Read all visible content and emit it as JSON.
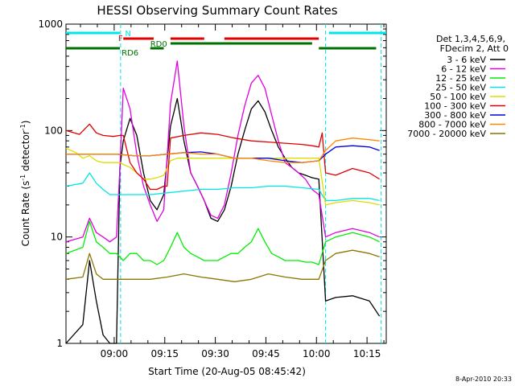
{
  "chart_data": {
    "type": "line",
    "title": "HESSI Observing Summary Count Rates",
    "xlabel": "Start Time (20-Aug-05 08:45:42)",
    "ylabel_main": "Count Rate (s",
    "ylabel_sup1": "-1",
    "ylabel_mid": " detector",
    "ylabel_sup2": "-1",
    "ylabel_end": ")",
    "yscale": "log",
    "ylim": [
      1,
      1000
    ],
    "xlim_minutes": [
      0,
      95
    ],
    "x_tick_labels": [
      {
        "label": "09:00",
        "t": 14.3
      },
      {
        "label": "09:15",
        "t": 29.3
      },
      {
        "label": "09:30",
        "t": 44.3
      },
      {
        "label": "09:45",
        "t": 59.3
      },
      {
        "label": "10:00",
        "t": 74.3
      },
      {
        "label": "10:15",
        "t": 89.3
      }
    ],
    "y_tick_labels": [
      {
        "label": "1",
        "v": 1
      },
      {
        "label": "10",
        "v": 10
      },
      {
        "label": "100",
        "v": 100
      },
      {
        "label": "1000",
        "v": 1000
      }
    ],
    "legend_header": [
      "Det 1,3,4,5,6,9,",
      "FDecim 2, Att 0"
    ],
    "timestamp": "8-Apr-2010 20:33",
    "markers": {
      "N": {
        "label": "N",
        "color": "#00e5e5",
        "segments": [
          [
            0,
            16
          ],
          [
            78,
            95
          ]
        ]
      },
      "F": {
        "label": "F",
        "color": "#e00000",
        "segments": [
          [
            17,
            26
          ],
          [
            31,
            41
          ],
          [
            47,
            75
          ]
        ]
      },
      "RD0": {
        "label": "RD0",
        "color": "#007000",
        "segments": [
          [
            31,
            73
          ]
        ]
      },
      "RD6": {
        "label": "RD6",
        "color": "#007000",
        "segments": [
          [
            0,
            16
          ],
          [
            25,
            29
          ],
          [
            75,
            92
          ]
        ]
      }
    },
    "vlines_minutes": [
      16.2,
      77.0,
      93.5
    ],
    "series": [
      {
        "name": "3 - 6 keV",
        "color": "#000000",
        "x": [
          0,
          5,
          7,
          9,
          11,
          13,
          15,
          16,
          17,
          19,
          21,
          23,
          25,
          27,
          29,
          31,
          33,
          35,
          37,
          39,
          41,
          43,
          45,
          47,
          49,
          51,
          53,
          55,
          57,
          59,
          61,
          63,
          65,
          67,
          69,
          71,
          73,
          75,
          77,
          80,
          85,
          90,
          93
        ],
        "y": [
          1,
          1.5,
          6,
          2.5,
          1.2,
          1,
          1,
          45,
          80,
          130,
          90,
          40,
          22,
          18,
          25,
          110,
          200,
          80,
          40,
          30,
          22,
          15,
          14,
          18,
          30,
          60,
          100,
          160,
          190,
          150,
          100,
          70,
          55,
          45,
          40,
          38,
          36,
          35,
          2.5,
          2.7,
          2.8,
          2.5,
          1.8
        ]
      },
      {
        "name": "6 - 12 keV",
        "color": "#e000e0",
        "x": [
          0,
          5,
          7,
          9,
          11,
          13,
          15,
          16,
          17,
          19,
          21,
          23,
          25,
          27,
          29,
          31,
          33,
          35,
          37,
          39,
          41,
          43,
          45,
          47,
          49,
          51,
          53,
          55,
          57,
          59,
          61,
          63,
          65,
          67,
          69,
          71,
          73,
          75,
          77,
          80,
          85,
          90,
          93
        ],
        "y": [
          9,
          10,
          15,
          11,
          10,
          9,
          10,
          45,
          250,
          160,
          60,
          30,
          20,
          14,
          18,
          180,
          450,
          110,
          40,
          30,
          22,
          16,
          15,
          20,
          40,
          90,
          170,
          280,
          330,
          250,
          140,
          80,
          50,
          45,
          40,
          35,
          28,
          25,
          10,
          11,
          12,
          11,
          10
        ]
      },
      {
        "name": "12 - 25 keV",
        "color": "#00ee00",
        "x": [
          0,
          5,
          7,
          9,
          11,
          13,
          15,
          17,
          19,
          21,
          23,
          25,
          27,
          29,
          31,
          33,
          35,
          37,
          39,
          41,
          43,
          45,
          47,
          49,
          51,
          53,
          55,
          57,
          59,
          61,
          63,
          65,
          67,
          69,
          71,
          73,
          75,
          77,
          80,
          85,
          90,
          93
        ],
        "y": [
          7,
          8,
          14,
          9,
          8,
          7,
          7,
          6,
          7,
          7,
          6,
          6,
          5.5,
          6,
          8,
          11,
          8,
          7,
          6.5,
          6,
          6,
          6,
          6.5,
          7,
          7,
          8,
          9,
          12,
          9,
          7,
          6.5,
          6,
          6,
          6,
          5.8,
          5.8,
          5.5,
          9,
          10,
          11,
          10,
          9
        ]
      },
      {
        "name": "25 - 50 keV",
        "color": "#00e5e5",
        "x": [
          0,
          5,
          7,
          9,
          11,
          13,
          16,
          20,
          25,
          30,
          35,
          40,
          45,
          50,
          55,
          60,
          65,
          70,
          75,
          77,
          80,
          85,
          90,
          93
        ],
        "y": [
          30,
          32,
          40,
          32,
          28,
          25,
          25,
          25,
          25,
          26,
          27,
          28,
          28,
          29,
          29,
          30,
          30,
          29,
          28,
          22,
          22,
          23,
          23,
          22
        ]
      },
      {
        "name": "50 - 100 keV",
        "color": "#dddd00",
        "x": [
          0,
          3,
          5,
          7,
          9,
          11,
          13,
          16,
          17,
          19,
          21,
          23,
          25,
          27,
          29,
          31,
          33,
          35,
          40,
          45,
          50,
          55,
          60,
          65,
          70,
          75,
          77,
          80,
          85,
          90,
          93
        ],
        "y": [
          68,
          62,
          55,
          58,
          52,
          50,
          50,
          50,
          48,
          45,
          40,
          35,
          35,
          36,
          38,
          52,
          55,
          55,
          55,
          55,
          55,
          55,
          55,
          55,
          55,
          55,
          20,
          21,
          22,
          21,
          20
        ]
      },
      {
        "name": "100 - 300 keV",
        "color": "#e00000",
        "x": [
          0,
          4,
          7,
          9,
          11,
          14,
          16,
          17,
          19,
          21,
          23,
          25,
          27,
          29,
          30,
          31,
          35,
          40,
          45,
          50,
          55,
          60,
          65,
          70,
          73,
          75,
          76,
          77,
          80,
          85,
          90,
          93
        ],
        "y": [
          100,
          92,
          115,
          95,
          90,
          88,
          90,
          90,
          50,
          40,
          35,
          28,
          28,
          30,
          30,
          85,
          90,
          95,
          92,
          85,
          80,
          78,
          76,
          74,
          72,
          70,
          95,
          40,
          38,
          44,
          40,
          35
        ]
      },
      {
        "name": "300 - 800 keV",
        "color": "#0000e0",
        "x": [
          0,
          5,
          10,
          15,
          20,
          25,
          30,
          35,
          40,
          45,
          50,
          55,
          60,
          65,
          70,
          75,
          77,
          80,
          85,
          90,
          93
        ],
        "y": [
          60,
          60,
          60,
          60,
          58,
          58,
          60,
          62,
          63,
          60,
          55,
          55,
          55,
          52,
          50,
          52,
          60,
          70,
          72,
          70,
          65
        ]
      },
      {
        "name": "800 - 7000 keV",
        "color": "#ff8800",
        "x": [
          0,
          5,
          10,
          15,
          20,
          25,
          30,
          35,
          40,
          45,
          50,
          55,
          60,
          65,
          70,
          75,
          77,
          80,
          85,
          90,
          93
        ],
        "y": [
          60,
          60,
          60,
          60,
          58,
          58,
          60,
          62,
          60,
          60,
          55,
          55,
          52,
          50,
          50,
          52,
          65,
          80,
          85,
          82,
          80
        ]
      },
      {
        "name": "7000 - 20000 keV",
        "color": "#887700",
        "x": [
          0,
          5,
          7,
          9,
          11,
          13,
          16,
          20,
          25,
          30,
          35,
          40,
          45,
          50,
          55,
          60,
          65,
          70,
          75,
          77,
          80,
          85,
          90,
          93
        ],
        "y": [
          4,
          4.2,
          7,
          4.5,
          4,
          4,
          4,
          4,
          4,
          4.2,
          4.5,
          4.2,
          4,
          3.8,
          4,
          4.5,
          4.2,
          4,
          4,
          6,
          7,
          7.5,
          7,
          6.5
        ]
      }
    ]
  }
}
